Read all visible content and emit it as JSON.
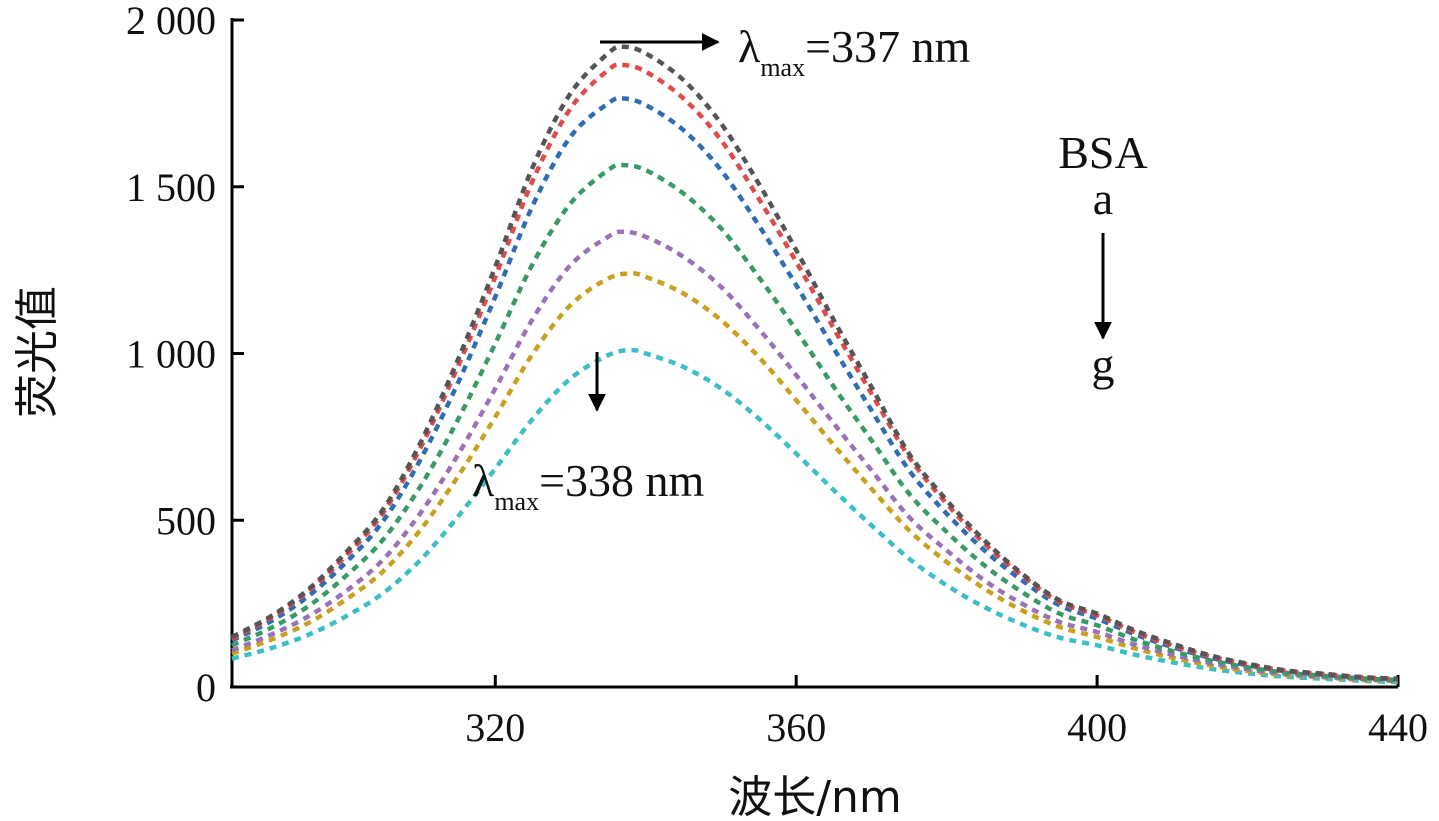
{
  "chart_data": {
    "type": "line",
    "xlabel": "波长/nm",
    "ylabel": "荧光值",
    "xlim": [
      285,
      440
    ],
    "ylim": [
      0,
      2000
    ],
    "xticks": [
      320,
      360,
      400,
      440
    ],
    "yticks": [
      0,
      500,
      1000,
      1500,
      2000
    ],
    "ytick_labels": [
      "0",
      "500",
      "1 000",
      "1 500",
      "2 000"
    ],
    "grid": false,
    "series": [
      {
        "name": "a",
        "color": "#555555",
        "peak_x": 337,
        "peak_y": 1920,
        "x": [
          285,
          290,
          295,
          300,
          305,
          310,
          315,
          320,
          325,
          330,
          335,
          337,
          340,
          345,
          350,
          355,
          360,
          365,
          370,
          375,
          380,
          385,
          390,
          395,
          400,
          405,
          410,
          415,
          420,
          425,
          430,
          435,
          440
        ],
        "y": [
          150,
          210,
          290,
          400,
          530,
          730,
          980,
          1260,
          1560,
          1780,
          1900,
          1920,
          1900,
          1820,
          1690,
          1510,
          1310,
          1100,
          900,
          700,
          560,
          440,
          340,
          260,
          220,
          170,
          130,
          95,
          70,
          50,
          40,
          30,
          25
        ]
      },
      {
        "name": "b",
        "color": "#e04a4a",
        "peak_x": 337,
        "peak_y": 1865,
        "x": [
          285,
          290,
          295,
          300,
          305,
          310,
          315,
          320,
          325,
          330,
          335,
          337,
          340,
          345,
          350,
          355,
          360,
          365,
          370,
          375,
          380,
          385,
          390,
          395,
          400,
          405,
          410,
          415,
          420,
          425,
          430,
          435,
          440
        ],
        "y": [
          145,
          205,
          285,
          390,
          520,
          715,
          960,
          1230,
          1520,
          1735,
          1850,
          1865,
          1845,
          1765,
          1640,
          1465,
          1275,
          1075,
          880,
          690,
          550,
          430,
          335,
          255,
          215,
          165,
          125,
          92,
          68,
          49,
          39,
          29,
          24
        ]
      },
      {
        "name": "c",
        "color": "#2f6db3",
        "peak_x": 337,
        "peak_y": 1765,
        "x": [
          285,
          290,
          295,
          300,
          305,
          310,
          315,
          320,
          325,
          330,
          335,
          337,
          340,
          345,
          350,
          355,
          360,
          365,
          370,
          375,
          380,
          385,
          390,
          395,
          400,
          405,
          410,
          415,
          420,
          425,
          430,
          435,
          440
        ],
        "y": [
          140,
          195,
          270,
          370,
          495,
          680,
          910,
          1170,
          1445,
          1650,
          1750,
          1765,
          1745,
          1670,
          1550,
          1385,
          1205,
          1015,
          830,
          650,
          520,
          410,
          320,
          245,
          205,
          158,
          120,
          88,
          65,
          47,
          37,
          28,
          23
        ]
      },
      {
        "name": "d",
        "color": "#3a9a66",
        "peak_x": 337,
        "peak_y": 1565,
        "x": [
          285,
          290,
          295,
          300,
          305,
          310,
          315,
          320,
          325,
          330,
          335,
          337,
          340,
          345,
          350,
          355,
          360,
          365,
          370,
          375,
          380,
          385,
          390,
          395,
          400,
          405,
          410,
          415,
          420,
          425,
          430,
          435,
          440
        ],
        "y": [
          125,
          175,
          240,
          330,
          440,
          600,
          800,
          1030,
          1270,
          1450,
          1550,
          1565,
          1550,
          1480,
          1375,
          1230,
          1070,
          900,
          740,
          580,
          465,
          365,
          285,
          220,
          185,
          142,
          108,
          80,
          59,
          43,
          34,
          26,
          21
        ]
      },
      {
        "name": "e",
        "color": "#9a72b8",
        "peak_x": 337,
        "peak_y": 1365,
        "x": [
          285,
          290,
          295,
          300,
          305,
          310,
          315,
          320,
          325,
          330,
          335,
          337,
          340,
          345,
          350,
          355,
          360,
          365,
          370,
          375,
          380,
          385,
          390,
          395,
          400,
          405,
          410,
          415,
          420,
          425,
          430,
          435,
          440
        ],
        "y": [
          110,
          155,
          210,
          285,
          380,
          520,
          695,
          895,
          1105,
          1265,
          1350,
          1365,
          1350,
          1290,
          1200,
          1075,
          935,
          790,
          650,
          510,
          410,
          320,
          250,
          195,
          165,
          127,
          97,
          72,
          53,
          39,
          31,
          24,
          19
        ]
      },
      {
        "name": "f",
        "color": "#c9a020",
        "peak_x": 338,
        "peak_y": 1240,
        "x": [
          285,
          290,
          295,
          300,
          305,
          310,
          315,
          320,
          325,
          330,
          335,
          338,
          340,
          345,
          350,
          355,
          360,
          365,
          370,
          375,
          380,
          385,
          390,
          395,
          400,
          405,
          410,
          415,
          420,
          425,
          430,
          435,
          440
        ],
        "y": [
          100,
          140,
          190,
          260,
          345,
          470,
          630,
          810,
          1000,
          1145,
          1225,
          1240,
          1230,
          1180,
          1100,
          990,
          860,
          725,
          595,
          470,
          375,
          295,
          230,
          180,
          150,
          116,
          88,
          65,
          48,
          36,
          29,
          22,
          18
        ]
      },
      {
        "name": "g",
        "color": "#3bbfc4",
        "peak_x": 338,
        "peak_y": 1010,
        "x": [
          285,
          290,
          295,
          300,
          305,
          310,
          315,
          320,
          325,
          330,
          335,
          338,
          340,
          345,
          350,
          355,
          360,
          365,
          370,
          375,
          380,
          385,
          390,
          395,
          400,
          405,
          410,
          415,
          420,
          425,
          430,
          435,
          440
        ],
        "y": [
          85,
          115,
          155,
          210,
          280,
          380,
          510,
          655,
          805,
          925,
          995,
          1010,
          1000,
          960,
          895,
          805,
          700,
          590,
          485,
          385,
          305,
          240,
          188,
          148,
          125,
          97,
          74,
          55,
          41,
          31,
          25,
          19,
          15
        ]
      }
    ],
    "annotations": {
      "top": {
        "lambda": "λ",
        "sub": "max",
        "text": "=337 nm",
        "x": 337,
        "y": 1920
      },
      "bottom": {
        "lambda": "λ",
        "sub": "max",
        "text": "=338 nm",
        "x": 338,
        "y": 1010
      },
      "legend_title": "BSA",
      "legend_from": "a",
      "legend_to": "g"
    }
  }
}
